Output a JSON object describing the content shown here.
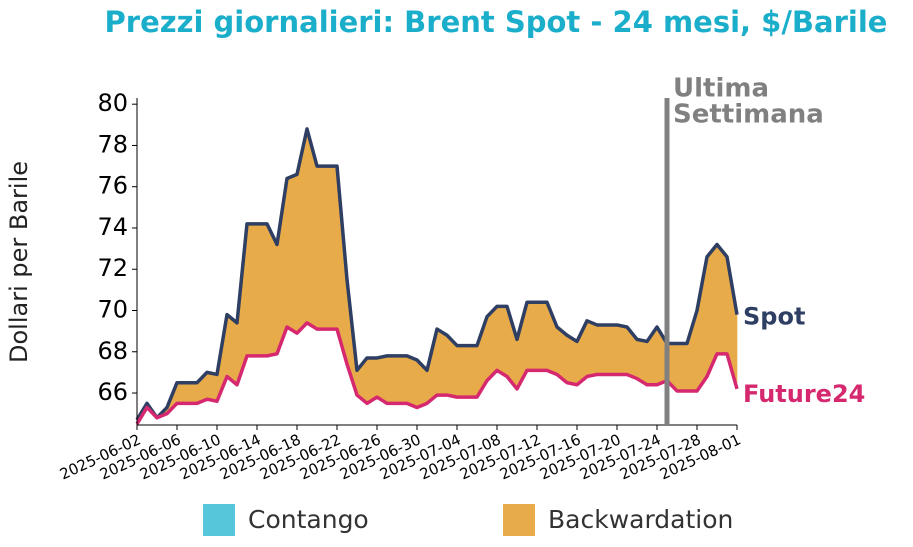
{
  "chart_data": {
    "type": "line",
    "title": "Prezzi giornalieri: Brent Spot - 24 mesi, $/Barile",
    "y_label": "Dollari per Barile",
    "x": [
      "2025-06-02",
      "2025-06-03",
      "2025-06-04",
      "2025-06-05",
      "2025-06-06",
      "2025-06-07",
      "2025-06-08",
      "2025-06-09",
      "2025-06-10",
      "2025-06-11",
      "2025-06-12",
      "2025-06-13",
      "2025-06-14",
      "2025-06-15",
      "2025-06-16",
      "2025-06-17",
      "2025-06-18",
      "2025-06-19",
      "2025-06-20",
      "2025-06-21",
      "2025-06-22",
      "2025-06-23",
      "2025-06-24",
      "2025-06-25",
      "2025-06-26",
      "2025-06-27",
      "2025-06-28",
      "2025-06-29",
      "2025-06-30",
      "2025-07-01",
      "2025-07-02",
      "2025-07-03",
      "2025-07-04",
      "2025-07-05",
      "2025-07-06",
      "2025-07-07",
      "2025-07-08",
      "2025-07-09",
      "2025-07-10",
      "2025-07-11",
      "2025-07-12",
      "2025-07-13",
      "2025-07-14",
      "2025-07-15",
      "2025-07-16",
      "2025-07-17",
      "2025-07-18",
      "2025-07-19",
      "2025-07-20",
      "2025-07-21",
      "2025-07-22",
      "2025-07-23",
      "2025-07-24",
      "2025-07-25",
      "2025-07-26",
      "2025-07-27",
      "2025-07-28",
      "2025-07-29",
      "2025-07-30",
      "2025-07-31",
      "2025-08-01"
    ],
    "series": [
      {
        "name": "Spot",
        "color": "#2e3f63",
        "values": [
          64.7,
          65.5,
          64.8,
          65.3,
          66.5,
          66.5,
          66.5,
          67.0,
          66.9,
          69.8,
          69.4,
          74.2,
          74.2,
          74.2,
          73.2,
          76.4,
          76.6,
          78.8,
          77.0,
          77.0,
          77.0,
          71.5,
          67.1,
          67.7,
          67.7,
          67.8,
          67.8,
          67.8,
          67.6,
          67.1,
          69.1,
          68.8,
          68.3,
          68.3,
          68.3,
          69.7,
          70.2,
          70.2,
          68.6,
          70.4,
          70.4,
          70.4,
          69.2,
          68.8,
          68.5,
          69.5,
          69.3,
          69.3,
          69.3,
          69.2,
          68.6,
          68.5,
          69.2,
          68.4,
          68.4,
          68.4,
          70.0,
          72.6,
          73.2,
          72.6,
          69.8
        ]
      },
      {
        "name": "Future24",
        "color": "#d6286f",
        "values": [
          64.5,
          65.3,
          64.8,
          65.0,
          65.5,
          65.5,
          65.5,
          65.7,
          65.6,
          66.8,
          66.4,
          67.8,
          67.8,
          67.8,
          67.9,
          69.2,
          68.9,
          69.4,
          69.1,
          69.1,
          69.1,
          67.4,
          65.9,
          65.5,
          65.8,
          65.5,
          65.5,
          65.5,
          65.3,
          65.5,
          65.9,
          65.9,
          65.8,
          65.8,
          65.8,
          66.6,
          67.1,
          66.8,
          66.2,
          67.1,
          67.1,
          67.1,
          66.9,
          66.5,
          66.4,
          66.8,
          66.9,
          66.9,
          66.9,
          66.9,
          66.7,
          66.4,
          66.4,
          66.6,
          66.1,
          66.1,
          66.1,
          66.8,
          67.9,
          67.9,
          66.2
        ]
      }
    ],
    "fill_legend": [
      {
        "name": "Contango",
        "color": "#56c7db"
      },
      {
        "name": "Backwardation",
        "color": "#e8ab4a"
      }
    ],
    "xlim": [
      "2025-06-02",
      "2025-08-01"
    ],
    "xticks": [
      "2025-06-02",
      "2025-06-06",
      "2025-06-10",
      "2025-06-14",
      "2025-06-18",
      "2025-06-22",
      "2025-06-26",
      "2025-06-30",
      "2025-07-04",
      "2025-07-08",
      "2025-07-12",
      "2025-07-16",
      "2025-07-20",
      "2025-07-24",
      "2025-07-28",
      "2025-08-01"
    ],
    "ylim": [
      64.45,
      80.3
    ],
    "yticks": [
      66,
      68,
      70,
      72,
      74,
      76,
      78,
      80
    ],
    "annotation": {
      "x": "2025-07-25",
      "lines": [
        "Ultima",
        "Settimana"
      ],
      "color": "#808080"
    }
  }
}
